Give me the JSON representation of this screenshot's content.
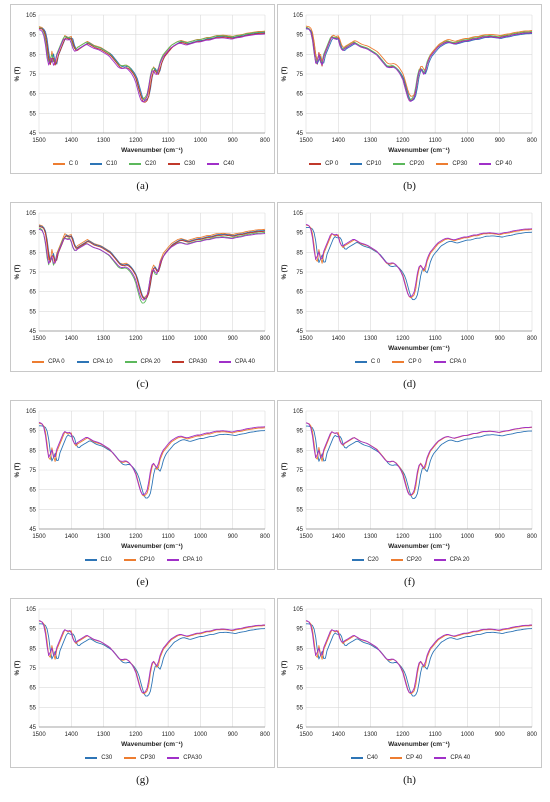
{
  "colors": {
    "orange": "#ed7d31",
    "blue": "#2e75b6",
    "green": "#5cb85c",
    "red": "#c0392b",
    "purple": "#a030c8"
  },
  "chart_data": [
    {
      "panel": "a",
      "caption": "(a)",
      "type": "line",
      "xlabel": "Wavenumber (cm⁻¹)",
      "ylabel": "% (T)",
      "xlim": [
        1500,
        800
      ],
      "ylim": [
        45,
        105
      ],
      "xticks": [
        "1500",
        "1400",
        "1300",
        "1200",
        "1100",
        "1000",
        "900",
        "800"
      ],
      "yticks": [
        "45",
        "55",
        "65",
        "75",
        "85",
        "95",
        "105"
      ],
      "grid": true,
      "legend": "bottom",
      "series": [
        {
          "name": "C 0",
          "color": "orange",
          "shift": 0,
          "scale": 1.0,
          "offset": 0.6
        },
        {
          "name": "C10",
          "color": "blue",
          "shift": 4,
          "scale": 1.0,
          "offset": 0.0
        },
        {
          "name": "C20",
          "color": "green",
          "shift": -2,
          "scale": 0.98,
          "offset": 0.3
        },
        {
          "name": "C30",
          "color": "red",
          "shift": 2,
          "scale": 1.02,
          "offset": -0.4
        },
        {
          "name": "C40",
          "color": "purple",
          "shift": -3,
          "scale": 1.0,
          "offset": -0.8
        }
      ]
    },
    {
      "panel": "b",
      "caption": "(b)",
      "type": "line",
      "xlabel": "Wavenumber (cm⁻¹)",
      "ylabel": "% (T)",
      "xlim": [
        1500,
        800
      ],
      "ylim": [
        45,
        105
      ],
      "xticks": [
        "1500",
        "1400",
        "1300",
        "1200",
        "1100",
        "1000",
        "900",
        "800"
      ],
      "yticks": [
        "45",
        "55",
        "65",
        "75",
        "85",
        "95",
        "105"
      ],
      "grid": true,
      "legend": "bottom",
      "series": [
        {
          "name": "CP 0",
          "color": "red",
          "shift": 0,
          "scale": 1.0,
          "offset": 0.0
        },
        {
          "name": "CP10",
          "color": "blue",
          "shift": 3,
          "scale": 0.99,
          "offset": -0.5
        },
        {
          "name": "CP20",
          "color": "green",
          "shift": -2,
          "scale": 1.0,
          "offset": 0.4
        },
        {
          "name": "CP30",
          "color": "orange",
          "shift": 2,
          "scale": 0.97,
          "offset": 1.0
        },
        {
          "name": "CP 40",
          "color": "purple",
          "shift": -1,
          "scale": 1.01,
          "offset": -0.2
        }
      ]
    },
    {
      "panel": "c",
      "caption": "(c)",
      "type": "line",
      "xlabel": "",
      "ylabel": "% (T)",
      "xlim": [
        1500,
        800
      ],
      "ylim": [
        45,
        105
      ],
      "xticks": [
        "1500",
        "1400",
        "1300",
        "1200",
        "1100",
        "1000",
        "900",
        "800"
      ],
      "yticks": [
        "45",
        "55",
        "65",
        "75",
        "85",
        "95",
        "105"
      ],
      "grid": true,
      "legend": "bottom",
      "series": [
        {
          "name": "CPA 0",
          "color": "orange",
          "shift": 0,
          "scale": 1.0,
          "offset": 0.5
        },
        {
          "name": "CPA 10",
          "color": "blue",
          "shift": 3,
          "scale": 1.0,
          "offset": 0.0
        },
        {
          "name": "CPA 20",
          "color": "green",
          "shift": -3,
          "scale": 1.04,
          "offset": -1.2
        },
        {
          "name": "CPA30",
          "color": "red",
          "shift": 2,
          "scale": 1.0,
          "offset": -0.4
        },
        {
          "name": "CPA 40",
          "color": "purple",
          "shift": -2,
          "scale": 0.98,
          "offset": -1.6
        }
      ]
    },
    {
      "panel": "d",
      "caption": "(d)",
      "type": "line",
      "xlabel": "Wavenumber (cm⁻¹)",
      "ylabel": "% (T)",
      "xlim": [
        1500,
        800
      ],
      "ylim": [
        45,
        105
      ],
      "xticks": [
        "1500",
        "1400",
        "1300",
        "1200",
        "1100",
        "1000",
        "900",
        "800"
      ],
      "yticks": [
        "45",
        "55",
        "65",
        "75",
        "85",
        "95",
        "105"
      ],
      "grid": true,
      "legend": "bottom",
      "series": [
        {
          "name": "C 0",
          "color": "blue",
          "shift": 8,
          "scale": 1.0,
          "offset": -0.8
        },
        {
          "name": "CP 0",
          "color": "orange",
          "shift": 0,
          "scale": 1.0,
          "offset": 0.4
        },
        {
          "name": "CPA 0",
          "color": "purple",
          "shift": -2,
          "scale": 1.0,
          "offset": 0.8
        }
      ]
    },
    {
      "panel": "e",
      "caption": "(e)",
      "type": "line",
      "xlabel": "Wavenumber (cm⁻¹)",
      "ylabel": "% (T)",
      "xlim": [
        1500,
        800
      ],
      "ylim": [
        45,
        105
      ],
      "xticks": [
        "1500",
        "1400",
        "1300",
        "1200",
        "1100",
        "1000",
        "900",
        "800"
      ],
      "yticks": [
        "45",
        "55",
        "65",
        "75",
        "85",
        "95",
        "105"
      ],
      "grid": true,
      "legend": "bottom",
      "series": [
        {
          "name": "C10",
          "color": "blue",
          "shift": 8,
          "scale": 1.0,
          "offset": -1.0
        },
        {
          "name": "CP10",
          "color": "orange",
          "shift": 0,
          "scale": 1.0,
          "offset": 0.3
        },
        {
          "name": "CPA 10",
          "color": "purple",
          "shift": -2,
          "scale": 1.0,
          "offset": 0.8
        }
      ]
    },
    {
      "panel": "f",
      "caption": "(f)",
      "type": "line",
      "xlabel": "Wavenumber (cm⁻¹)",
      "ylabel": "% (T)",
      "xlim": [
        1500,
        800
      ],
      "ylim": [
        45,
        105
      ],
      "xticks": [
        "1500",
        "1400",
        "1300",
        "1200",
        "1100",
        "1000",
        "900",
        "800"
      ],
      "yticks": [
        "45",
        "55",
        "65",
        "75",
        "85",
        "95",
        "105"
      ],
      "grid": true,
      "legend": "bottom",
      "series": [
        {
          "name": "C20",
          "color": "blue",
          "shift": 8,
          "scale": 1.0,
          "offset": -1.2
        },
        {
          "name": "CP20",
          "color": "orange",
          "shift": 0,
          "scale": 1.0,
          "offset": 0.5
        },
        {
          "name": "CPA 20",
          "color": "purple",
          "shift": -2,
          "scale": 1.0,
          "offset": 0.6
        }
      ]
    },
    {
      "panel": "g",
      "caption": "(g)",
      "type": "line",
      "xlabel": "Wavenumber (cm⁻¹)",
      "ylabel": "% (T)",
      "xlim": [
        1500,
        800
      ],
      "ylim": [
        45,
        105
      ],
      "xticks": [
        "1500",
        "1400",
        "1300",
        "1200",
        "1100",
        "1000",
        "900",
        "800"
      ],
      "yticks": [
        "45",
        "55",
        "65",
        "75",
        "85",
        "95",
        "105"
      ],
      "grid": true,
      "legend": "bottom",
      "series": [
        {
          "name": "C30",
          "color": "blue",
          "shift": 8,
          "scale": 1.0,
          "offset": -1.0
        },
        {
          "name": "CP30",
          "color": "orange",
          "shift": 0,
          "scale": 1.0,
          "offset": 0.4
        },
        {
          "name": "CPA30",
          "color": "purple",
          "shift": -2,
          "scale": 1.0,
          "offset": 0.7
        }
      ]
    },
    {
      "panel": "h",
      "caption": "(h)",
      "type": "line",
      "xlabel": "Wavenumber (cm⁻¹)",
      "ylabel": "% (T)",
      "xlim": [
        1500,
        800
      ],
      "ylim": [
        45,
        105
      ],
      "xticks": [
        "1500",
        "1400",
        "1300",
        "1200",
        "1100",
        "1000",
        "900",
        "800"
      ],
      "yticks": [
        "45",
        "55",
        "65",
        "75",
        "85",
        "95",
        "105"
      ],
      "grid": true,
      "legend": "bottom",
      "series": [
        {
          "name": "C40",
          "color": "blue",
          "shift": 8,
          "scale": 1.0,
          "offset": -1.0
        },
        {
          "name": "CP 40",
          "color": "orange",
          "shift": 0,
          "scale": 1.0,
          "offset": 0.4
        },
        {
          "name": "CPA 40",
          "color": "purple",
          "shift": -2,
          "scale": 1.0,
          "offset": 0.7
        }
      ]
    }
  ],
  "base_spectrum": {
    "x": [
      1500,
      1490,
      1485,
      1480,
      1475,
      1470,
      1465,
      1460,
      1455,
      1450,
      1445,
      1440,
      1430,
      1420,
      1410,
      1400,
      1395,
      1390,
      1385,
      1380,
      1370,
      1360,
      1350,
      1340,
      1330,
      1320,
      1310,
      1300,
      1290,
      1280,
      1270,
      1260,
      1250,
      1240,
      1230,
      1220,
      1210,
      1200,
      1195,
      1190,
      1185,
      1180,
      1175,
      1170,
      1165,
      1160,
      1155,
      1150,
      1145,
      1140,
      1135,
      1130,
      1125,
      1120,
      1115,
      1110,
      1105,
      1100,
      1090,
      1080,
      1070,
      1060,
      1050,
      1040,
      1030,
      1020,
      1010,
      1000,
      990,
      980,
      970,
      960,
      950,
      940,
      930,
      920,
      910,
      900,
      890,
      880,
      870,
      860,
      850,
      840,
      830,
      820,
      810,
      800
    ],
    "y": [
      98.5,
      98,
      97,
      94,
      88,
      81,
      80,
      86,
      82,
      79,
      84,
      86,
      90,
      94,
      93,
      93.5,
      90,
      88,
      87,
      88,
      89,
      90,
      91,
      90,
      89,
      88.5,
      88,
      87,
      86,
      85,
      83,
      81,
      79,
      78.5,
      79,
      78,
      76,
      73,
      70,
      67,
      64,
      62,
      61.5,
      62,
      63,
      66,
      72,
      76,
      78,
      77,
      75,
      76,
      80,
      82,
      84,
      85,
      86,
      87,
      89,
      90,
      91,
      91.5,
      91,
      90.5,
      91,
      91.5,
      92,
      92,
      92.5,
      93,
      93,
      93.5,
      94,
      94,
      94.2,
      94,
      93.8,
      93.5,
      94,
      94.3,
      94.5,
      95,
      95.3,
      95.5,
      95.8,
      96,
      96,
      96.2
    ]
  }
}
